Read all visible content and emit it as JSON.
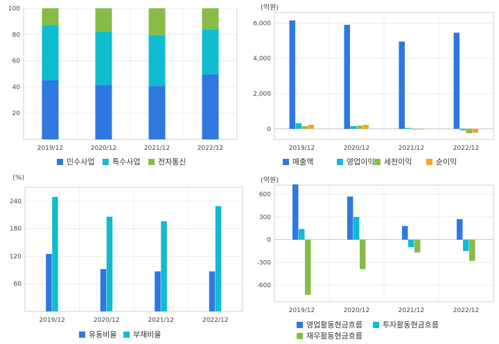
{
  "colors": {
    "blue": "#2e78e0",
    "cyan": "#10bcd0",
    "green": "#86bd48",
    "orange": "#f5a623"
  },
  "chart_data": [
    {
      "id": "segment-share",
      "type": "bar",
      "stacked": true,
      "unit": "",
      "categories": [
        "2019/12",
        "2020/12",
        "2021/12",
        "2022/12"
      ],
      "y_ticks": [
        "20",
        "40",
        "60",
        "80",
        "100"
      ],
      "ylim": [
        0,
        100
      ],
      "series": [
        {
          "name": "민수사업",
          "color": "#2e78e0",
          "values": [
            45,
            41.5,
            40.5,
            49.5
          ]
        },
        {
          "name": "특수사업",
          "color": "#10bcd0",
          "values": [
            42,
            40.5,
            39,
            34.5
          ]
        },
        {
          "name": "전자통신",
          "color": "#86bd48",
          "values": [
            13,
            18,
            20.5,
            16
          ]
        }
      ],
      "legend_position": "bottom"
    },
    {
      "id": "income",
      "type": "bar",
      "unit": "(억원)",
      "categories": [
        "2019/12",
        "2020/12",
        "2021/12",
        "2022/12"
      ],
      "y_ticks": [
        "0",
        "2,000",
        "4,000",
        "6,000"
      ],
      "ylim": [
        -600,
        6600
      ],
      "series": [
        {
          "name": "매출액",
          "color": "#2e78e0",
          "values": [
            6150,
            5900,
            4950,
            5450
          ]
        },
        {
          "name": "영업이익",
          "color": "#10bcd0",
          "values": [
            320,
            150,
            50,
            -80
          ]
        },
        {
          "name": "세전이익",
          "color": "#86bd48",
          "values": [
            150,
            180,
            -30,
            -250
          ]
        },
        {
          "name": "순이익",
          "color": "#f5a623",
          "values": [
            230,
            230,
            0,
            -220
          ]
        }
      ],
      "legend_position": "bottom"
    },
    {
      "id": "ratios",
      "type": "bar",
      "unit": "(%)",
      "categories": [
        "2019/12",
        "2020/12",
        "2021/12",
        "2022/12"
      ],
      "y_ticks": [
        "60",
        "120",
        "180",
        "240"
      ],
      "ylim": [
        0,
        270
      ],
      "series": [
        {
          "name": "유동비율",
          "color": "#2e78e0",
          "values": [
            125,
            92,
            87,
            87
          ]
        },
        {
          "name": "부채비율",
          "color": "#10bcd0",
          "values": [
            249,
            206,
            196,
            229
          ]
        }
      ],
      "legend_position": "bottom"
    },
    {
      "id": "cashflow",
      "type": "bar",
      "unit": "(억원)",
      "categories": [
        "2019/12",
        "2020/12",
        "2021/12",
        "2022/12"
      ],
      "y_ticks": [
        "-600",
        "-300",
        "0",
        "300",
        "600"
      ],
      "ylim": [
        -820,
        720
      ],
      "series": [
        {
          "name": "영업활동현금흐름",
          "color": "#2e78e0",
          "values": [
            730,
            570,
            180,
            270
          ]
        },
        {
          "name": "투자활동현금흐름",
          "color": "#10bcd0",
          "values": [
            140,
            300,
            -100,
            -150
          ]
        },
        {
          "name": "재무활동현금흐름",
          "color": "#86bd48",
          "values": [
            -730,
            -390,
            -170,
            -280
          ]
        }
      ],
      "legend_position": "bottom"
    }
  ]
}
